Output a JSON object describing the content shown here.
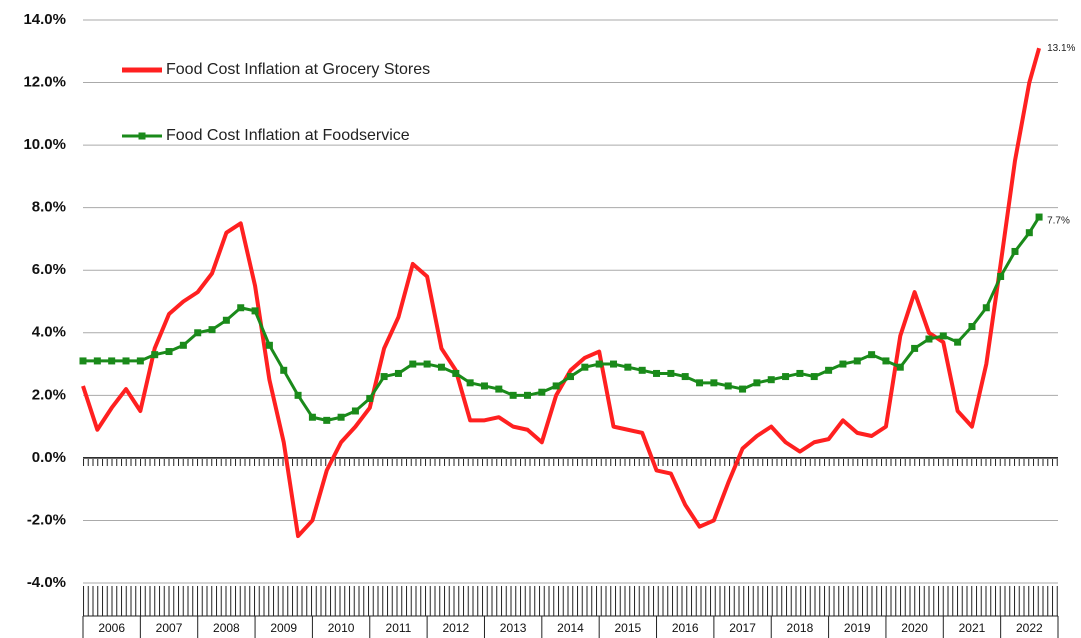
{
  "chart_data": {
    "type": "line",
    "x": [
      2006,
      2006.25,
      2006.5,
      2006.75,
      2007,
      2007.25,
      2007.5,
      2007.75,
      2008,
      2008.25,
      2008.5,
      2008.75,
      2009,
      2009.25,
      2009.5,
      2009.75,
      2010,
      2010.25,
      2010.5,
      2010.75,
      2011,
      2011.25,
      2011.5,
      2011.75,
      2012,
      2012.25,
      2012.5,
      2012.75,
      2013,
      2013.25,
      2013.5,
      2013.75,
      2014,
      2014.25,
      2014.5,
      2014.75,
      2015,
      2015.25,
      2015.5,
      2015.75,
      2016,
      2016.25,
      2016.5,
      2016.75,
      2017,
      2017.25,
      2017.5,
      2017.75,
      2018,
      2018.25,
      2018.5,
      2018.75,
      2019,
      2019.25,
      2019.5,
      2019.75,
      2020,
      2020.25,
      2020.5,
      2020.75,
      2021,
      2021.25,
      2021.5,
      2021.75,
      2022,
      2022.25,
      2022.5,
      2022.67
    ],
    "series": [
      {
        "name": "Food Cost Inflation at Grocery Stores",
        "color": "#ff2020",
        "end_label": "13.1%",
        "values": [
          2.3,
          0.9,
          1.6,
          2.2,
          1.5,
          3.5,
          4.6,
          5.0,
          5.3,
          5.9,
          7.2,
          7.5,
          5.5,
          2.5,
          0.5,
          -2.5,
          -2.0,
          -0.4,
          0.5,
          1.0,
          1.6,
          3.5,
          4.5,
          6.2,
          5.8,
          3.5,
          2.8,
          1.2,
          1.2,
          1.3,
          1.0,
          0.9,
          0.5,
          2.0,
          2.8,
          3.2,
          3.4,
          1.0,
          0.9,
          0.8,
          -0.4,
          -0.5,
          -1.5,
          -2.2,
          -2.0,
          -0.8,
          0.3,
          0.7,
          1.0,
          0.5,
          0.2,
          0.5,
          0.6,
          1.2,
          0.8,
          0.7,
          1.0,
          3.9,
          5.3,
          4.0,
          3.7,
          1.5,
          1.0,
          3.0,
          6.2,
          9.5,
          12.0,
          13.1
        ]
      },
      {
        "name": "Food Cost Inflation at Foodservice",
        "color": "#1a8a1a",
        "end_label": "7.7%",
        "values": [
          3.1,
          3.1,
          3.1,
          3.1,
          3.1,
          3.3,
          3.4,
          3.6,
          4.0,
          4.1,
          4.4,
          4.8,
          4.7,
          3.6,
          2.8,
          2.0,
          1.3,
          1.2,
          1.3,
          1.5,
          1.9,
          2.6,
          2.7,
          3.0,
          3.0,
          2.9,
          2.7,
          2.4,
          2.3,
          2.2,
          2.0,
          2.0,
          2.1,
          2.3,
          2.6,
          2.9,
          3.0,
          3.0,
          2.9,
          2.8,
          2.7,
          2.7,
          2.6,
          2.4,
          2.4,
          2.3,
          2.2,
          2.4,
          2.5,
          2.6,
          2.7,
          2.6,
          2.8,
          3.0,
          3.1,
          3.3,
          3.1,
          2.9,
          3.5,
          3.8,
          3.9,
          3.7,
          4.2,
          4.8,
          5.8,
          6.6,
          7.2,
          7.7
        ]
      }
    ],
    "xlim": [
      2006,
      2023
    ],
    "xticks": [
      {
        "value": 2006.5,
        "label": "2006"
      },
      {
        "value": 2007.5,
        "label": "2007"
      },
      {
        "value": 2008.5,
        "label": "2008"
      },
      {
        "value": 2009.5,
        "label": "2009"
      },
      {
        "value": 2010.5,
        "label": "2010"
      },
      {
        "value": 2011.5,
        "label": "2011"
      },
      {
        "value": 2012.5,
        "label": "2012"
      },
      {
        "value": 2013.5,
        "label": "2013"
      },
      {
        "value": 2014.5,
        "label": "2014"
      },
      {
        "value": 2015.5,
        "label": "2015"
      },
      {
        "value": 2016.5,
        "label": "2016"
      },
      {
        "value": 2017.5,
        "label": "2017"
      },
      {
        "value": 2018.5,
        "label": "2018"
      },
      {
        "value": 2019.5,
        "label": "2019"
      },
      {
        "value": 2020.5,
        "label": "2020"
      },
      {
        "value": 2021.5,
        "label": "2021"
      },
      {
        "value": 2022.5,
        "label": "2022"
      }
    ],
    "ylim": [
      -4,
      14
    ],
    "yticks": [
      {
        "value": -4,
        "label": "-4.0%"
      },
      {
        "value": -2,
        "label": "-2.0%"
      },
      {
        "value": 0,
        "label": "0.0%"
      },
      {
        "value": 2,
        "label": "2.0%"
      },
      {
        "value": 4,
        "label": "4.0%"
      },
      {
        "value": 6,
        "label": "6.0%"
      },
      {
        "value": 8,
        "label": "8.0%"
      },
      {
        "value": 10,
        "label": "10.0%"
      },
      {
        "value": 12,
        "label": "12.0%"
      },
      {
        "value": 14,
        "label": "14.0%"
      }
    ],
    "grid": true,
    "legend": "upper left"
  }
}
